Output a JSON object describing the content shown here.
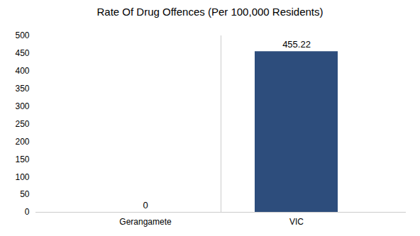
{
  "chart_data": {
    "type": "bar",
    "title": "Rate Of Drug Offences (Per 100,000 Residents)",
    "categories": [
      "Gerangamete",
      "VIC"
    ],
    "values": [
      0,
      455.22
    ],
    "color": "#2d4d7c",
    "ylim": [
      0,
      500
    ],
    "yticks": [
      0,
      50,
      100,
      150,
      200,
      250,
      300,
      350,
      400,
      450,
      500
    ],
    "grid": false,
    "data_labels": true
  }
}
